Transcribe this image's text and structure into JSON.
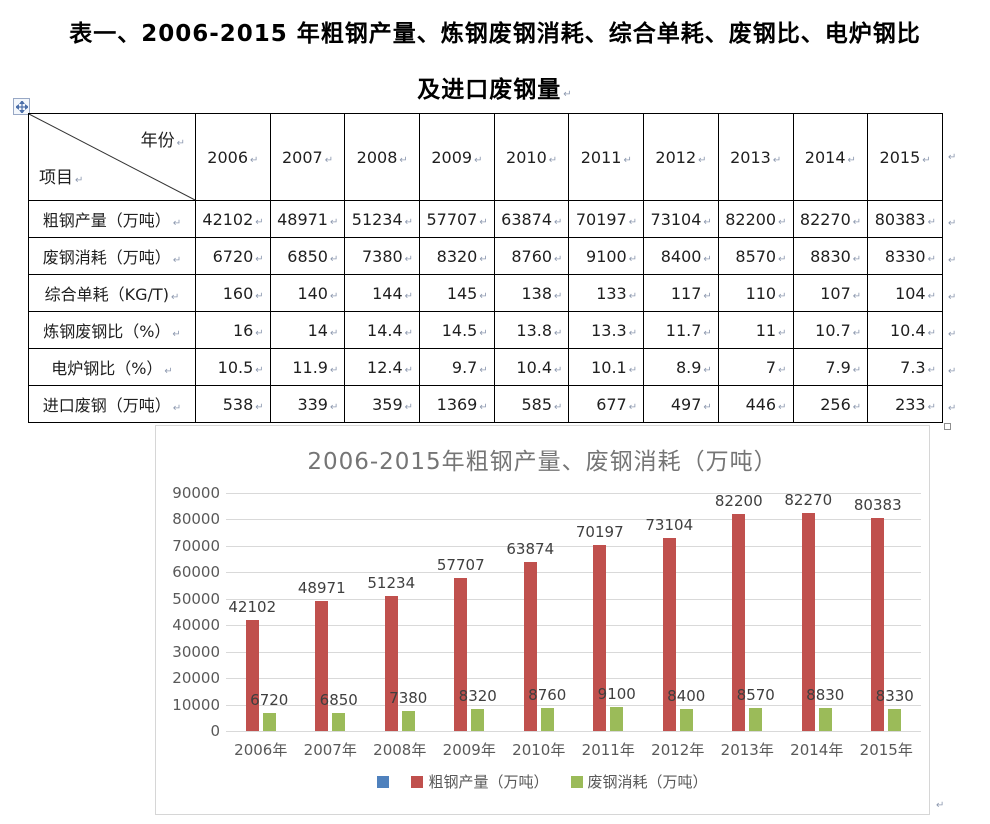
{
  "document": {
    "title_line1": "表一、2006-2015 年粗钢产量、炼钢废钢消耗、综合单耗、废钢比、电炉钢比",
    "title_line2": "及进口废钢量"
  },
  "marks": {
    "paragraph": "↵"
  },
  "table": {
    "corner": {
      "top_label": "年份",
      "bottom_label": "项目"
    },
    "years": [
      "2006",
      "2007",
      "2008",
      "2009",
      "2010",
      "2011",
      "2012",
      "2013",
      "2014",
      "2015"
    ],
    "rows": [
      {
        "label": "粗钢产量（万吨）",
        "values": [
          "42102",
          "48971",
          "51234",
          "57707",
          "63874",
          "70197",
          "73104",
          "82200",
          "82270",
          "80383"
        ]
      },
      {
        "label": "废钢消耗（万吨）",
        "values": [
          "6720",
          "6850",
          "7380",
          "8320",
          "8760",
          "9100",
          "8400",
          "8570",
          "8830",
          "8330"
        ]
      },
      {
        "label": "综合单耗（KG/T)",
        "values": [
          "160",
          "140",
          "144",
          "145",
          "138",
          "133",
          "117",
          "110",
          "107",
          "104"
        ]
      },
      {
        "label": "炼钢废钢比（%）",
        "values": [
          "16",
          "14",
          "14.4",
          "14.5",
          "13.8",
          "13.3",
          "11.7",
          "11",
          "10.7",
          "10.4"
        ]
      },
      {
        "label": "电炉钢比（%）",
        "values": [
          "10.5",
          "11.9",
          "12.4",
          "9.7",
          "10.4",
          "10.1",
          "8.9",
          "7",
          "7.9",
          "7.3"
        ]
      },
      {
        "label": "进口废钢（万吨）",
        "values": [
          "538",
          "339",
          "359",
          "1369",
          "585",
          "677",
          "497",
          "446",
          "256",
          "233"
        ]
      }
    ]
  },
  "chart_data": {
    "type": "bar",
    "title": "2006-2015年粗钢产量、废钢消耗（万吨）",
    "categories": [
      "2006年",
      "2007年",
      "2008年",
      "2009年",
      "2010年",
      "2011年",
      "2012年",
      "2013年",
      "2014年",
      "2015年"
    ],
    "series": [
      {
        "name": "粗钢产量（万吨）",
        "color": "#C0504D",
        "values": [
          42102,
          48971,
          51234,
          57707,
          63874,
          70197,
          73104,
          82200,
          82270,
          80383
        ]
      },
      {
        "name": "废钢消耗（万吨）",
        "color": "#9BBB59",
        "values": [
          6720,
          6850,
          7380,
          8320,
          8760,
          9100,
          8400,
          8570,
          8830,
          8330
        ]
      }
    ],
    "legend": [
      {
        "label": "",
        "color": "#4F81BD"
      },
      {
        "label": "粗钢产量（万吨）",
        "color": "#C0504D"
      },
      {
        "label": "废钢消耗（万吨）",
        "color": "#9BBB59"
      }
    ],
    "ylim": [
      0,
      90000
    ],
    "yticks": [
      0,
      10000,
      20000,
      30000,
      40000,
      50000,
      60000,
      70000,
      80000,
      90000
    ],
    "grid": "horizontal",
    "legend_position": "bottom",
    "data_labels": true
  }
}
